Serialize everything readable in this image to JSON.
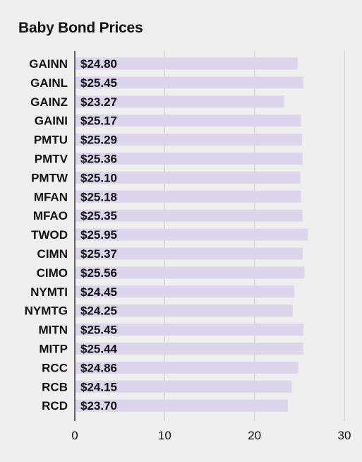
{
  "chart_data": {
    "type": "bar",
    "orientation": "horizontal",
    "title": "Baby Bond Prices",
    "categories": [
      "GAINN",
      "GAINL",
      "GAINZ",
      "GAINI",
      "PMTU",
      "PMTV",
      "PMTW",
      "MFAN",
      "MFAO",
      "TWOD",
      "CIMN",
      "CIMO",
      "NYMTI",
      "NYMTG",
      "MITN",
      "MITP",
      "RCC",
      "RCB",
      "RCD"
    ],
    "values": [
      24.8,
      25.45,
      23.27,
      25.17,
      25.29,
      25.36,
      25.1,
      25.18,
      25.35,
      25.95,
      25.37,
      25.56,
      24.45,
      24.25,
      25.45,
      25.44,
      24.86,
      24.15,
      23.7
    ],
    "value_labels": [
      "$24.80",
      "$25.45",
      "$23.27",
      "$25.17",
      "$25.29",
      "$25.36",
      "$25.10",
      "$25.18",
      "$25.35",
      "$25.95",
      "$25.37",
      "$25.56",
      "$24.45",
      "$24.25",
      "$25.45",
      "$25.44",
      "$24.86",
      "$24.15",
      "$23.70"
    ],
    "xlim": [
      0,
      30
    ],
    "xticks": [
      "0",
      "10",
      "20",
      "30"
    ],
    "grid": true,
    "bar_color": "#dcd5ec",
    "grid_color": "#c9c9c9",
    "axis_color": "#333333"
  }
}
